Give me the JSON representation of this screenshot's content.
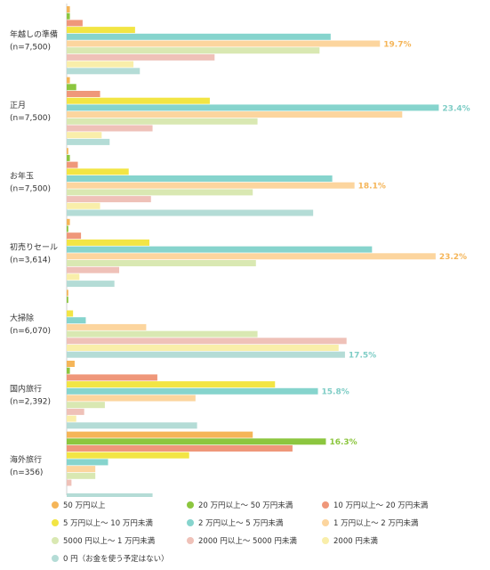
{
  "chart_data": {
    "type": "bar",
    "orientation": "horizontal",
    "xlim": [
      0,
      23.6
    ],
    "grid": false,
    "legend_position": "bottom",
    "categories": [
      {
        "name": "年越しの準備",
        "n": "(n=7,500)"
      },
      {
        "name": "正月",
        "n": "(n=7,500)"
      },
      {
        "name": "お年玉",
        "n": "(n=7,500)"
      },
      {
        "name": "初売りセール",
        "n": "(n=3,614)"
      },
      {
        "name": "大掃除",
        "n": "(n=6,070)"
      },
      {
        "name": "国内旅行",
        "n": "(n=2,392)"
      },
      {
        "name": "海外旅行",
        "n": "(n=356)"
      }
    ],
    "series": [
      {
        "name": "50 万円以上",
        "color": "#f5b558",
        "values": [
          0.2,
          0.2,
          0.1,
          0.2,
          0.1,
          0.5,
          11.7
        ]
      },
      {
        "name": "20 万円以上～ 50 万円未満",
        "color": "#8cc63f",
        "values": [
          0.2,
          0.6,
          0.2,
          0.1,
          0.1,
          0.2,
          16.3
        ]
      },
      {
        "name": "10 万円以上～ 20 万円未満",
        "color": "#ef977a",
        "values": [
          1.0,
          2.1,
          0.7,
          0.9,
          0.0,
          5.7,
          14.2
        ]
      },
      {
        "name": "5 万円以上～ 10 万円未満",
        "color": "#f2e544",
        "values": [
          4.3,
          9.0,
          3.9,
          5.2,
          0.4,
          13.1,
          7.7
        ]
      },
      {
        "name": "2 万円以上～ 5 万円未満",
        "color": "#86d4cd",
        "values": [
          16.6,
          23.4,
          16.7,
          19.2,
          1.2,
          15.8,
          2.6
        ]
      },
      {
        "name": "1 万円以上～ 2 万円未満",
        "color": "#fcd59e",
        "values": [
          19.7,
          21.1,
          18.1,
          23.2,
          5.0,
          8.1,
          1.8
        ]
      },
      {
        "name": "5000 円以上～ 1 万円未満",
        "color": "#d9e8b2",
        "values": [
          15.9,
          12.0,
          11.7,
          11.9,
          12.0,
          2.4,
          1.8
        ]
      },
      {
        "name": "2000 円以上～ 5000 円未満",
        "color": "#efc1b8",
        "values": [
          9.3,
          5.4,
          5.3,
          3.3,
          17.6,
          1.1,
          0.3
        ]
      },
      {
        "name": "2000 円未満",
        "color": "#f9eeaa",
        "values": [
          4.2,
          2.2,
          2.1,
          0.8,
          17.1,
          0.6,
          0.0
        ]
      },
      {
        "name": "0 円（お金を使う予定はない）",
        "color": "#b4dcd6",
        "values": [
          4.6,
          2.7,
          15.5,
          3.0,
          17.5,
          8.2,
          5.4
        ]
      }
    ],
    "max_labels": [
      {
        "category": 0,
        "series": 5,
        "text": "19.7%",
        "color": "#f5b558"
      },
      {
        "category": 1,
        "series": 4,
        "text": "23.4%",
        "color": "#7fcdc6"
      },
      {
        "category": 2,
        "series": 5,
        "text": "18.1%",
        "color": "#f5b558"
      },
      {
        "category": 3,
        "series": 5,
        "text": "23.2%",
        "color": "#f5b558"
      },
      {
        "category": 4,
        "series": 9,
        "text": "17.5%",
        "color": "#7fcdc6"
      },
      {
        "category": 5,
        "series": 4,
        "text": "15.8%",
        "color": "#7fcdc6"
      },
      {
        "category": 6,
        "series": 1,
        "text": "16.3%",
        "color": "#8cc63f"
      }
    ]
  }
}
